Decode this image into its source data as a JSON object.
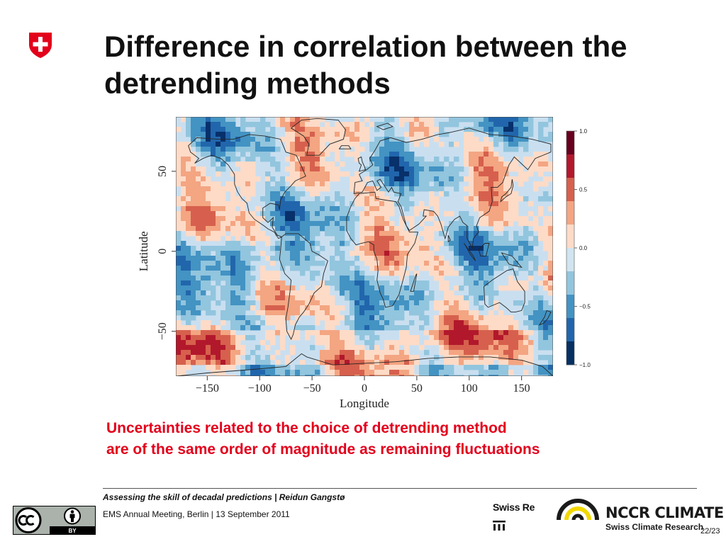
{
  "slide": {
    "title": "Difference in correlation between the detrending methods",
    "takeaway_line1": "Uncertainties related to the choice of detrending method",
    "takeaway_line2": "are of the same order of magnitude as remaining fluctuations",
    "page_number": "22/23"
  },
  "footer": {
    "presentation_title": "Assessing the skill of decadal predictions | Reidun Gangstø",
    "event": "EMS Annual Meeting, Berlin | 13 September 2011",
    "cc_label": "BY"
  },
  "logos": {
    "swissre_text": "Swiss Re",
    "nccr_name": "NCCR CLIMATE",
    "nccr_sub": "Swiss Climate Research"
  },
  "chart_data": {
    "type": "heatmap",
    "title": "",
    "xlabel": "Longitude",
    "ylabel": "Latitude",
    "x_ticks": [
      -150,
      -100,
      -50,
      0,
      50,
      100,
      150
    ],
    "y_ticks": [
      50,
      0,
      -50
    ],
    "xlim": [
      -180,
      180
    ],
    "ylim": [
      -90,
      90
    ],
    "colorbar": {
      "ticks": [
        1.0,
        0.5,
        0.0,
        -0.5,
        -1.0
      ],
      "tick_labels": [
        "1.0",
        "0.5",
        "0.0",
        "−0.5",
        "−1.0"
      ],
      "range": [
        -1.0,
        1.0
      ],
      "colors": [
        "#67001f",
        "#b2182b",
        "#d6604d",
        "#f4a582",
        "#fddbc7",
        "#d1e5f0",
        "#92c5de",
        "#4393c3",
        "#2166ac",
        "#053061"
      ]
    }
  },
  "colors": {
    "accent_red": "#e3001b",
    "ocean_base": "#c9dff0",
    "nccr_yellow": "#f2d800"
  }
}
